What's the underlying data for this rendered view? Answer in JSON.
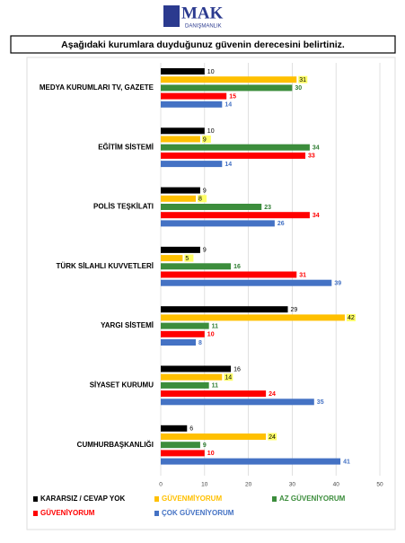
{
  "header": {
    "logo": "MAK",
    "logo_sub": "DANIŞMANLIK"
  },
  "chart_data": {
    "type": "hbar",
    "title": "Aşağıdaki kurumlara duyduğunuz güvenin derecesini belirtiniz.",
    "categories": [
      "MEDYA KURUMLARI TV, GAZETE",
      "EĞİTİM SİSTEMİ",
      "POLİS TEŞKİLATI",
      "TÜRK SİLAHLI KUVVETLERİ",
      "YARGI SİSTEMİ",
      "SİYASET KURUMU",
      "CUMHURBAŞKANLIĞI"
    ],
    "series": [
      {
        "name": "KARARSIZ / CEVAP YOK",
        "color": "#000000",
        "label_color": "#000000",
        "values": [
          10,
          10,
          9,
          9,
          29,
          16,
          6
        ]
      },
      {
        "name": "GÜVENMİYORUM",
        "color": "#FFC000",
        "label_color": "#000000",
        "label_background": "#FFFF66",
        "values": [
          31,
          9,
          8,
          5,
          42,
          14,
          24
        ]
      },
      {
        "name": "AZ GÜVENİYORUM",
        "color": "#3C8D3C",
        "label_color": "#2E7D32",
        "values": [
          30,
          34,
          23,
          16,
          11,
          11,
          9
        ]
      },
      {
        "name": "GÜVENİYORUM",
        "color": "#FF0000",
        "label_color": "#FF0000",
        "values": [
          15,
          33,
          34,
          31,
          10,
          24,
          10
        ]
      },
      {
        "name": "ÇOK GÜVENİYORUM",
        "color": "#4472C4",
        "label_color": "#4472C4",
        "values": [
          14,
          14,
          26,
          39,
          8,
          35,
          41
        ]
      }
    ],
    "xlim": [
      0,
      50
    ],
    "xticks": [
      0,
      10,
      20,
      30,
      40,
      50
    ],
    "grid": true
  }
}
